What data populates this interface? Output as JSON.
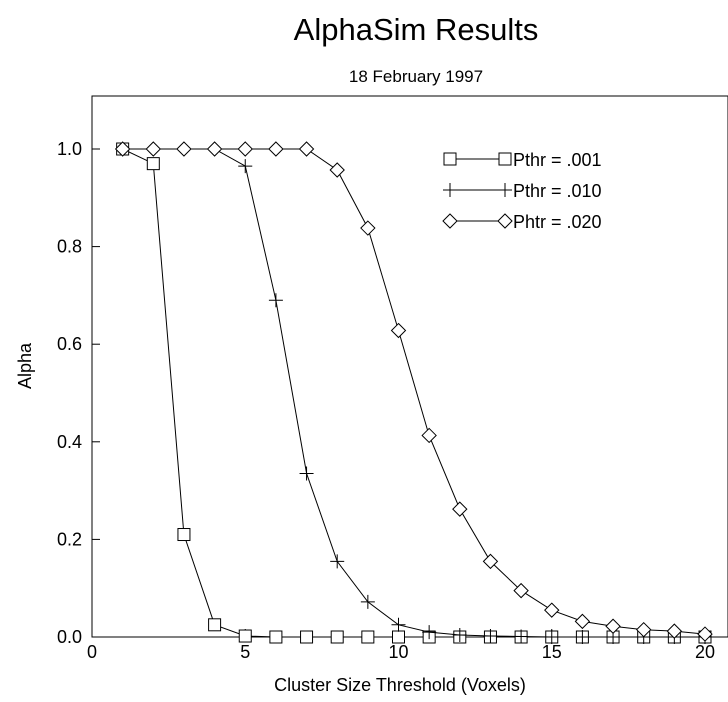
{
  "chart_data": {
    "type": "line",
    "title": "AlphaSim Results",
    "subtitle": "18 February 1997",
    "xlabel": "Cluster Size Threshold (Voxels)",
    "ylabel": "Alpha",
    "xlim": [
      0,
      20
    ],
    "ylim": [
      0.0,
      1.1
    ],
    "xticks": [
      0,
      5,
      10,
      15,
      20
    ],
    "xtick_labels": [
      "0",
      "5",
      "10",
      "15",
      "20"
    ],
    "yticks": [
      0.0,
      0.2,
      0.4,
      0.6,
      0.8,
      1.0
    ],
    "ytick_labels": [
      "0.0",
      "0.2",
      "0.4",
      "0.6",
      "0.8",
      "1.0"
    ],
    "grid": false,
    "legend_position": "top-right",
    "series": [
      {
        "name": "Pthr = .001",
        "marker": "square",
        "x": [
          1,
          2,
          3,
          4,
          5,
          6,
          7,
          8,
          9,
          10,
          11,
          12,
          13,
          14,
          15,
          16,
          17,
          18,
          19,
          20
        ],
        "y": [
          1.0,
          0.97,
          0.21,
          0.025,
          0.002,
          0.0,
          0.0,
          0.0,
          0.0,
          0.0,
          0.0,
          0.0,
          0.0,
          0.0,
          0.0,
          0.0,
          0.0,
          0.0,
          0.0,
          0.0
        ]
      },
      {
        "name": "Pthr = .010",
        "marker": "plus",
        "x": [
          1,
          2,
          3,
          4,
          5,
          6,
          7,
          8,
          9,
          10,
          11,
          12,
          13,
          14,
          15,
          16,
          17,
          18,
          19,
          20
        ],
        "y": [
          1.0,
          1.0,
          1.0,
          1.0,
          0.965,
          0.69,
          0.335,
          0.155,
          0.072,
          0.025,
          0.01,
          0.004,
          0.002,
          0.001,
          0.0,
          0.0,
          0.0,
          0.0,
          0.0,
          0.0
        ]
      },
      {
        "name": "Phtr = .020",
        "marker": "diamond",
        "x": [
          1,
          2,
          3,
          4,
          5,
          6,
          7,
          8,
          9,
          10,
          11,
          12,
          13,
          14,
          15,
          16,
          17,
          18,
          19,
          20
        ],
        "y": [
          1.0,
          1.0,
          1.0,
          1.0,
          1.0,
          1.0,
          1.0,
          0.957,
          0.838,
          0.628,
          0.413,
          0.262,
          0.155,
          0.095,
          0.055,
          0.032,
          0.022,
          0.015,
          0.012,
          0.006
        ]
      }
    ]
  }
}
